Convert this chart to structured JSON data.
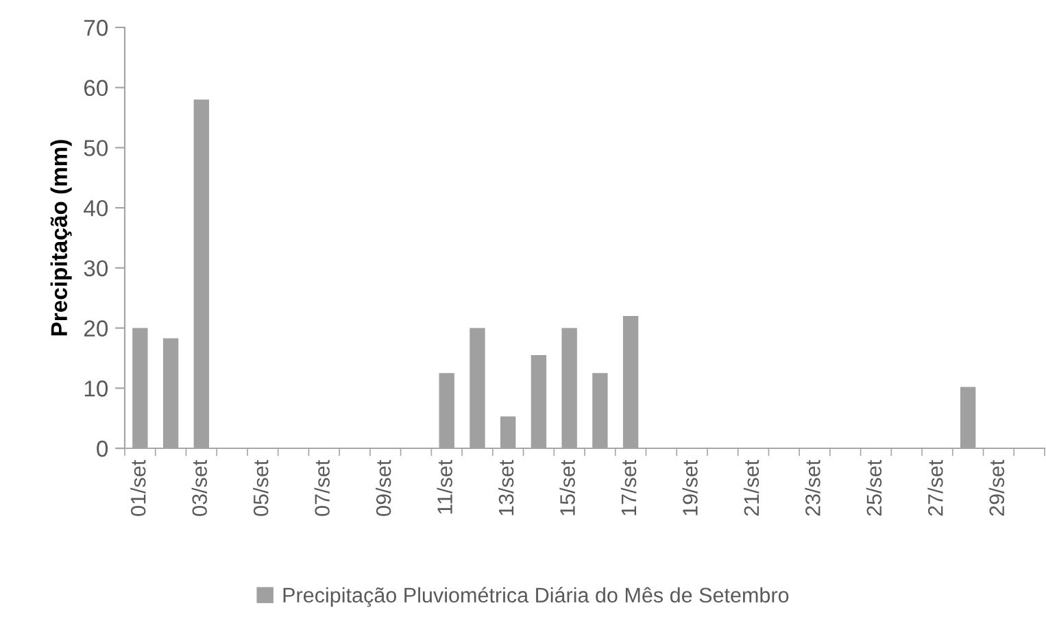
{
  "chart_data": {
    "type": "bar",
    "ylabel": "Precipitação (mm)",
    "categories": [
      "01/set",
      null,
      "03/set",
      null,
      "05/set",
      null,
      "07/set",
      null,
      "09/set",
      null,
      "11/set",
      null,
      "13/set",
      null,
      "15/set",
      null,
      "17/set",
      null,
      "19/set",
      null,
      "21/set",
      null,
      "23/set",
      null,
      "25/set",
      null,
      "27/set",
      null,
      "29/set",
      null
    ],
    "series": [
      {
        "name": "Precipitação Pluviométrica Diária do Mês de Setembro",
        "color": "#a0a0a0",
        "values": [
          20,
          18.3,
          58,
          0,
          0,
          0,
          0,
          0,
          0,
          0,
          12.5,
          20,
          5.3,
          15.5,
          20,
          12.5,
          22,
          0,
          0,
          0,
          0,
          0,
          0,
          0,
          0,
          0,
          0,
          10.2,
          0,
          0
        ]
      }
    ],
    "ylim": [
      0,
      70
    ],
    "yticks": [
      0,
      10,
      20,
      30,
      40,
      50,
      60,
      70
    ],
    "legend": "bottom"
  }
}
